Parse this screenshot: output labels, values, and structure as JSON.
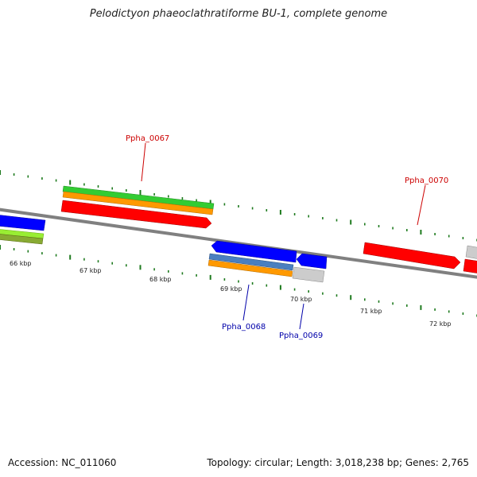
{
  "title": "Pelodictyon phaeoclathratiforme BU-1, complete genome",
  "footer": {
    "accession": "Accession: NC_011060",
    "summary": "Topology: circular; Length: 3,018,238 bp; Genes: 2,765"
  },
  "scale_labels": [
    "66 kbp",
    "67 kbp",
    "68 kbp",
    "69 kbp",
    "70 kbp",
    "71 kbp",
    "72 kbp"
  ],
  "gene_labels": [
    {
      "name": "Ppha_0067",
      "color": "#cc0000"
    },
    {
      "name": "Ppha_0068",
      "color": "#0000aa"
    },
    {
      "name": "Ppha_0069",
      "color": "#0000aa"
    },
    {
      "name": "Ppha_0070",
      "color": "#cc0000"
    }
  ],
  "colors": {
    "backbone": "#808080",
    "tick": "#1e7a1e",
    "forward_cds": "#ff0000",
    "reverse_cds": "#0000ff",
    "gene_green": "#33cc33",
    "gene_orange": "#ff9900",
    "gene_steelblue": "#4a7fbf",
    "gene_lightgray": "#cccccc",
    "gene_lime": "#99ee33"
  }
}
